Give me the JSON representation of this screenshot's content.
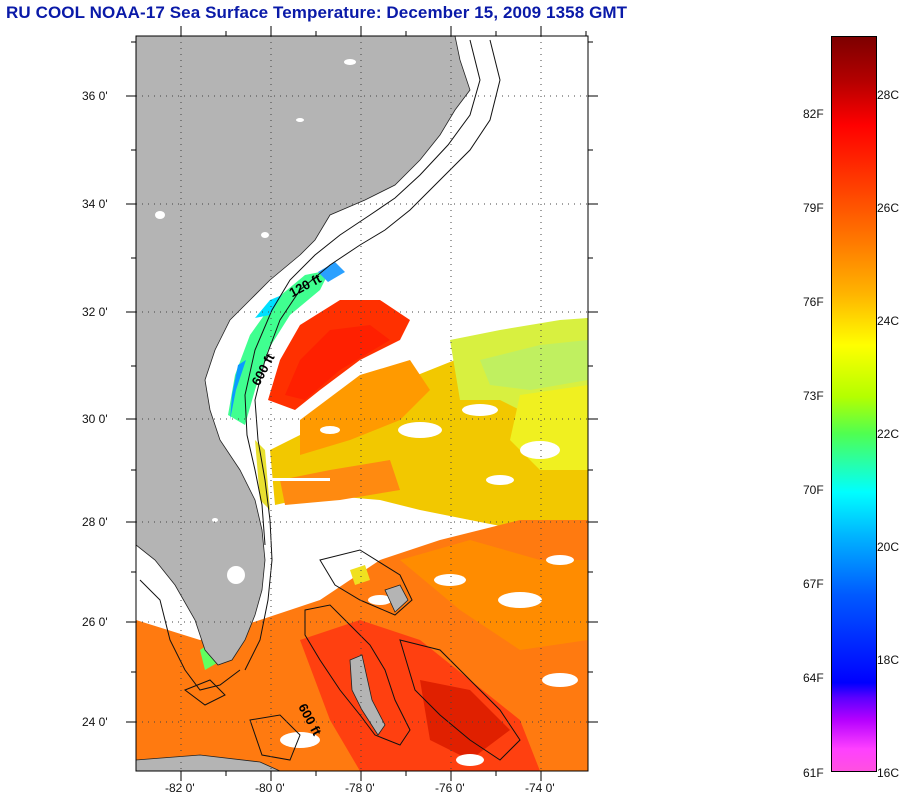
{
  "title": "RU COOL  NOAA-17  Sea Surface Temperature:  December 15, 2009 1358 GMT",
  "map": {
    "lat_ticks": [
      "36 0'",
      "34 0'",
      "32 0'",
      "30 0'",
      "28 0'",
      "26 0'",
      "24 0'"
    ],
    "lon_ticks": [
      "-82 0'",
      "-80 0'",
      "-78 0'",
      "-76 0'",
      "-74 0'"
    ],
    "lat_range": [
      23,
      37
    ],
    "lon_range": [
      -83,
      -73
    ],
    "contour_labels": [
      "120 ft",
      "600 ft",
      "600 ft"
    ],
    "land_color": "#b4b4b4",
    "cloud_color": "#ffffff"
  },
  "colorbar": {
    "fahrenheit_labels": [
      "82F",
      "79F",
      "76F",
      "73F",
      "70F",
      "67F",
      "64F",
      "61F"
    ],
    "celsius_labels": [
      "28C",
      "26C",
      "24C",
      "22C",
      "20C",
      "18C",
      "16C"
    ],
    "range_c": [
      16,
      29.5
    ],
    "scale_colors": [
      "#7d0000",
      "#ff0000",
      "#ff7a00",
      "#ffff00",
      "#50ff50",
      "#00ffff",
      "#0000ff",
      "#ff50e0"
    ]
  }
}
